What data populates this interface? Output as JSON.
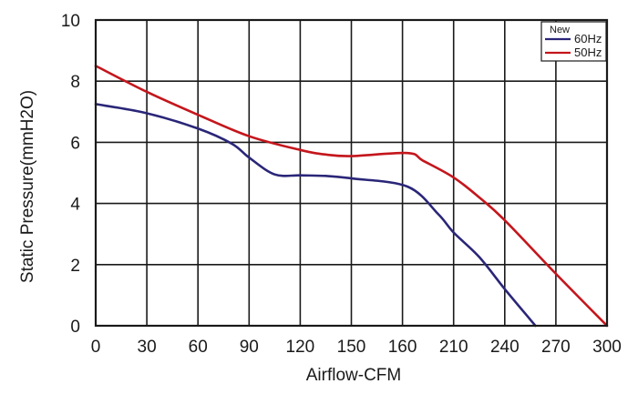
{
  "chart_data": {
    "type": "line",
    "title": "",
    "xlabel": "Airflow-CFM",
    "ylabel": "Static Pressure(mmH2O)",
    "x_tick_labels": [
      "0",
      "30",
      "60",
      "90",
      "120",
      "150",
      "160",
      "210",
      "240",
      "270",
      "300"
    ],
    "y_ticks": [
      0,
      2,
      4,
      6,
      8,
      10
    ],
    "ylim": [
      0,
      10
    ],
    "grid": true,
    "legend": {
      "position": "top-right",
      "header": "New"
    },
    "series": [
      {
        "name": "60Hz",
        "color": "#2a2678",
        "points": [
          [
            0,
            7.25
          ],
          [
            30,
            6.95
          ],
          [
            60,
            6.45
          ],
          [
            80,
            5.95
          ],
          [
            90,
            5.5
          ],
          [
            105,
            4.95
          ],
          [
            120,
            4.92
          ],
          [
            135,
            4.9
          ],
          [
            150,
            4.82
          ],
          [
            165,
            4.55
          ],
          [
            195,
            3.65
          ],
          [
            210,
            3.05
          ],
          [
            225,
            2.25
          ],
          [
            240,
            1.2
          ],
          [
            255,
            0.2
          ],
          [
            258,
            0
          ]
        ]
      },
      {
        "name": "50Hz",
        "color": "#c4161c",
        "points": [
          [
            0,
            8.5
          ],
          [
            30,
            7.65
          ],
          [
            60,
            6.9
          ],
          [
            90,
            6.2
          ],
          [
            120,
            5.75
          ],
          [
            135,
            5.6
          ],
          [
            150,
            5.55
          ],
          [
            165,
            5.65
          ],
          [
            180,
            5.4
          ],
          [
            210,
            4.85
          ],
          [
            225,
            4.2
          ],
          [
            240,
            3.45
          ],
          [
            270,
            1.7
          ],
          [
            300,
            0
          ]
        ]
      }
    ]
  }
}
